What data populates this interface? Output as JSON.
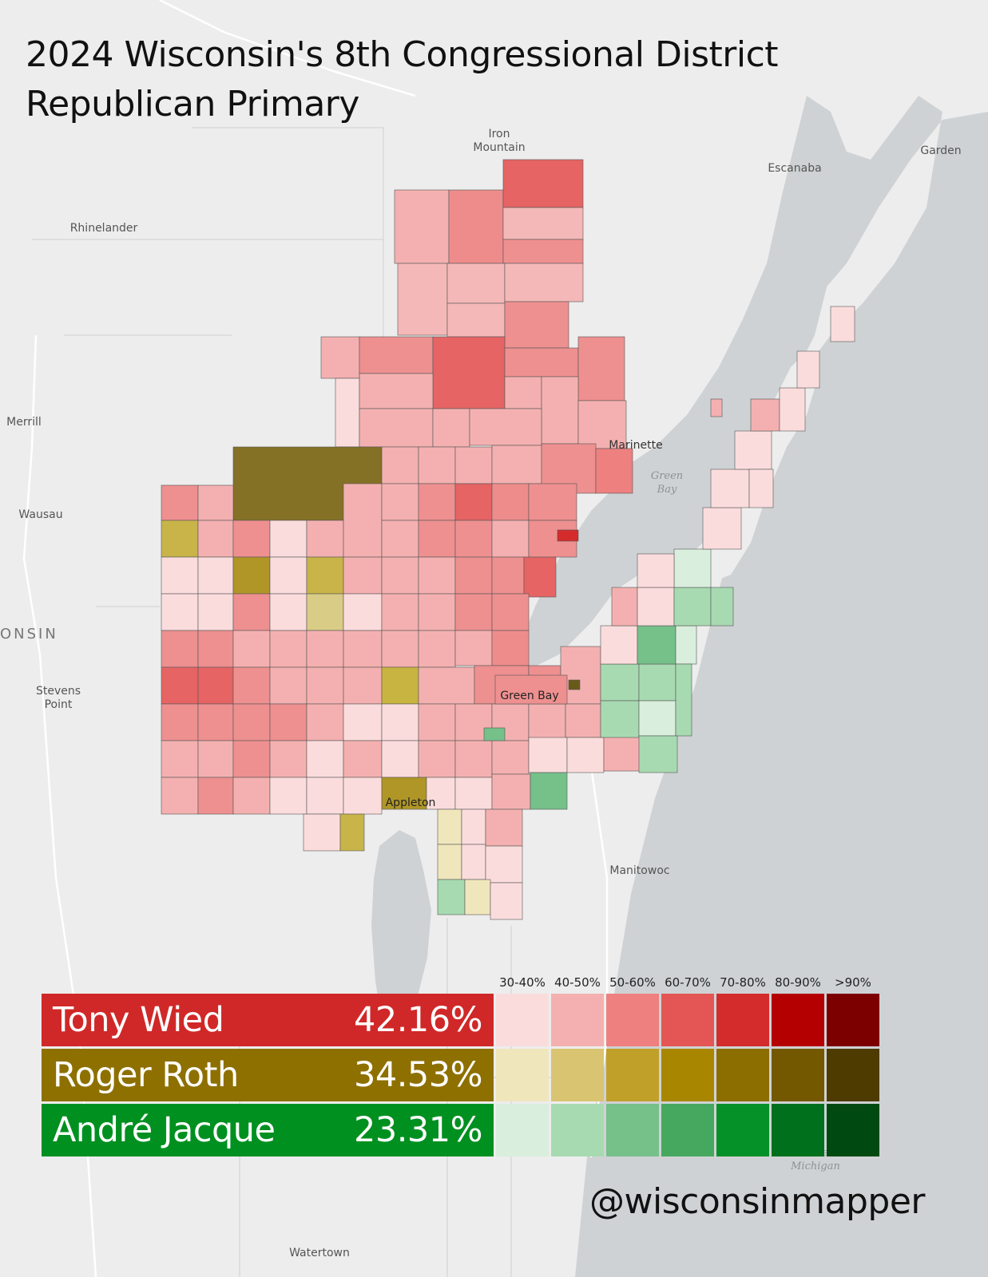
{
  "title": {
    "line1": "2024 Wisconsin's 8th Congressional District",
    "line2": "Republican Primary"
  },
  "places": {
    "iron_mountain": "Iron\nMountain",
    "escanaba": "Escanaba",
    "garden": "Garden",
    "rhinelander": "Rhinelander",
    "merrill": "Merrill",
    "wausau": "Wausau",
    "wisconsin": "ONSIN",
    "stevens_point": "Stevens\nPoint",
    "marinette": "Marinette",
    "green_bay_water": "Green\nBay",
    "green_bay_city": "Green Bay",
    "appleton": "Appleton",
    "manitowoc": "Manitowoc",
    "lake_michigan": "Lake\nMichigan",
    "watertown": "Watertown"
  },
  "legend": {
    "bins": [
      "30-40%",
      "40-50%",
      "50-60%",
      "60-70%",
      "70-80%",
      "80-90%",
      ">90%"
    ],
    "candidates": [
      {
        "name": "Tony Wied",
        "percent": "42.16%",
        "color": "#d02828",
        "shades": [
          "#fbdcdc",
          "#f4b0b0",
          "#ee8080",
          "#e45656",
          "#d42c2c",
          "#b40000",
          "#7d0000"
        ]
      },
      {
        "name": "Roger Roth",
        "percent": "34.53%",
        "color": "#8e7000",
        "shades": [
          "#f0e6bc",
          "#d9c472",
          "#c0a028",
          "#a88600",
          "#8c6e00",
          "#735800",
          "#4d3b00"
        ]
      },
      {
        "name": "André Jacque",
        "percent": "23.31%",
        "color": "#009020",
        "shades": [
          "#d9eedc",
          "#a8dab2",
          "#76c08a",
          "#46a85e",
          "#069028",
          "#00701c",
          "#004a12"
        ]
      }
    ]
  },
  "credit": "@wisconsinmapper"
}
